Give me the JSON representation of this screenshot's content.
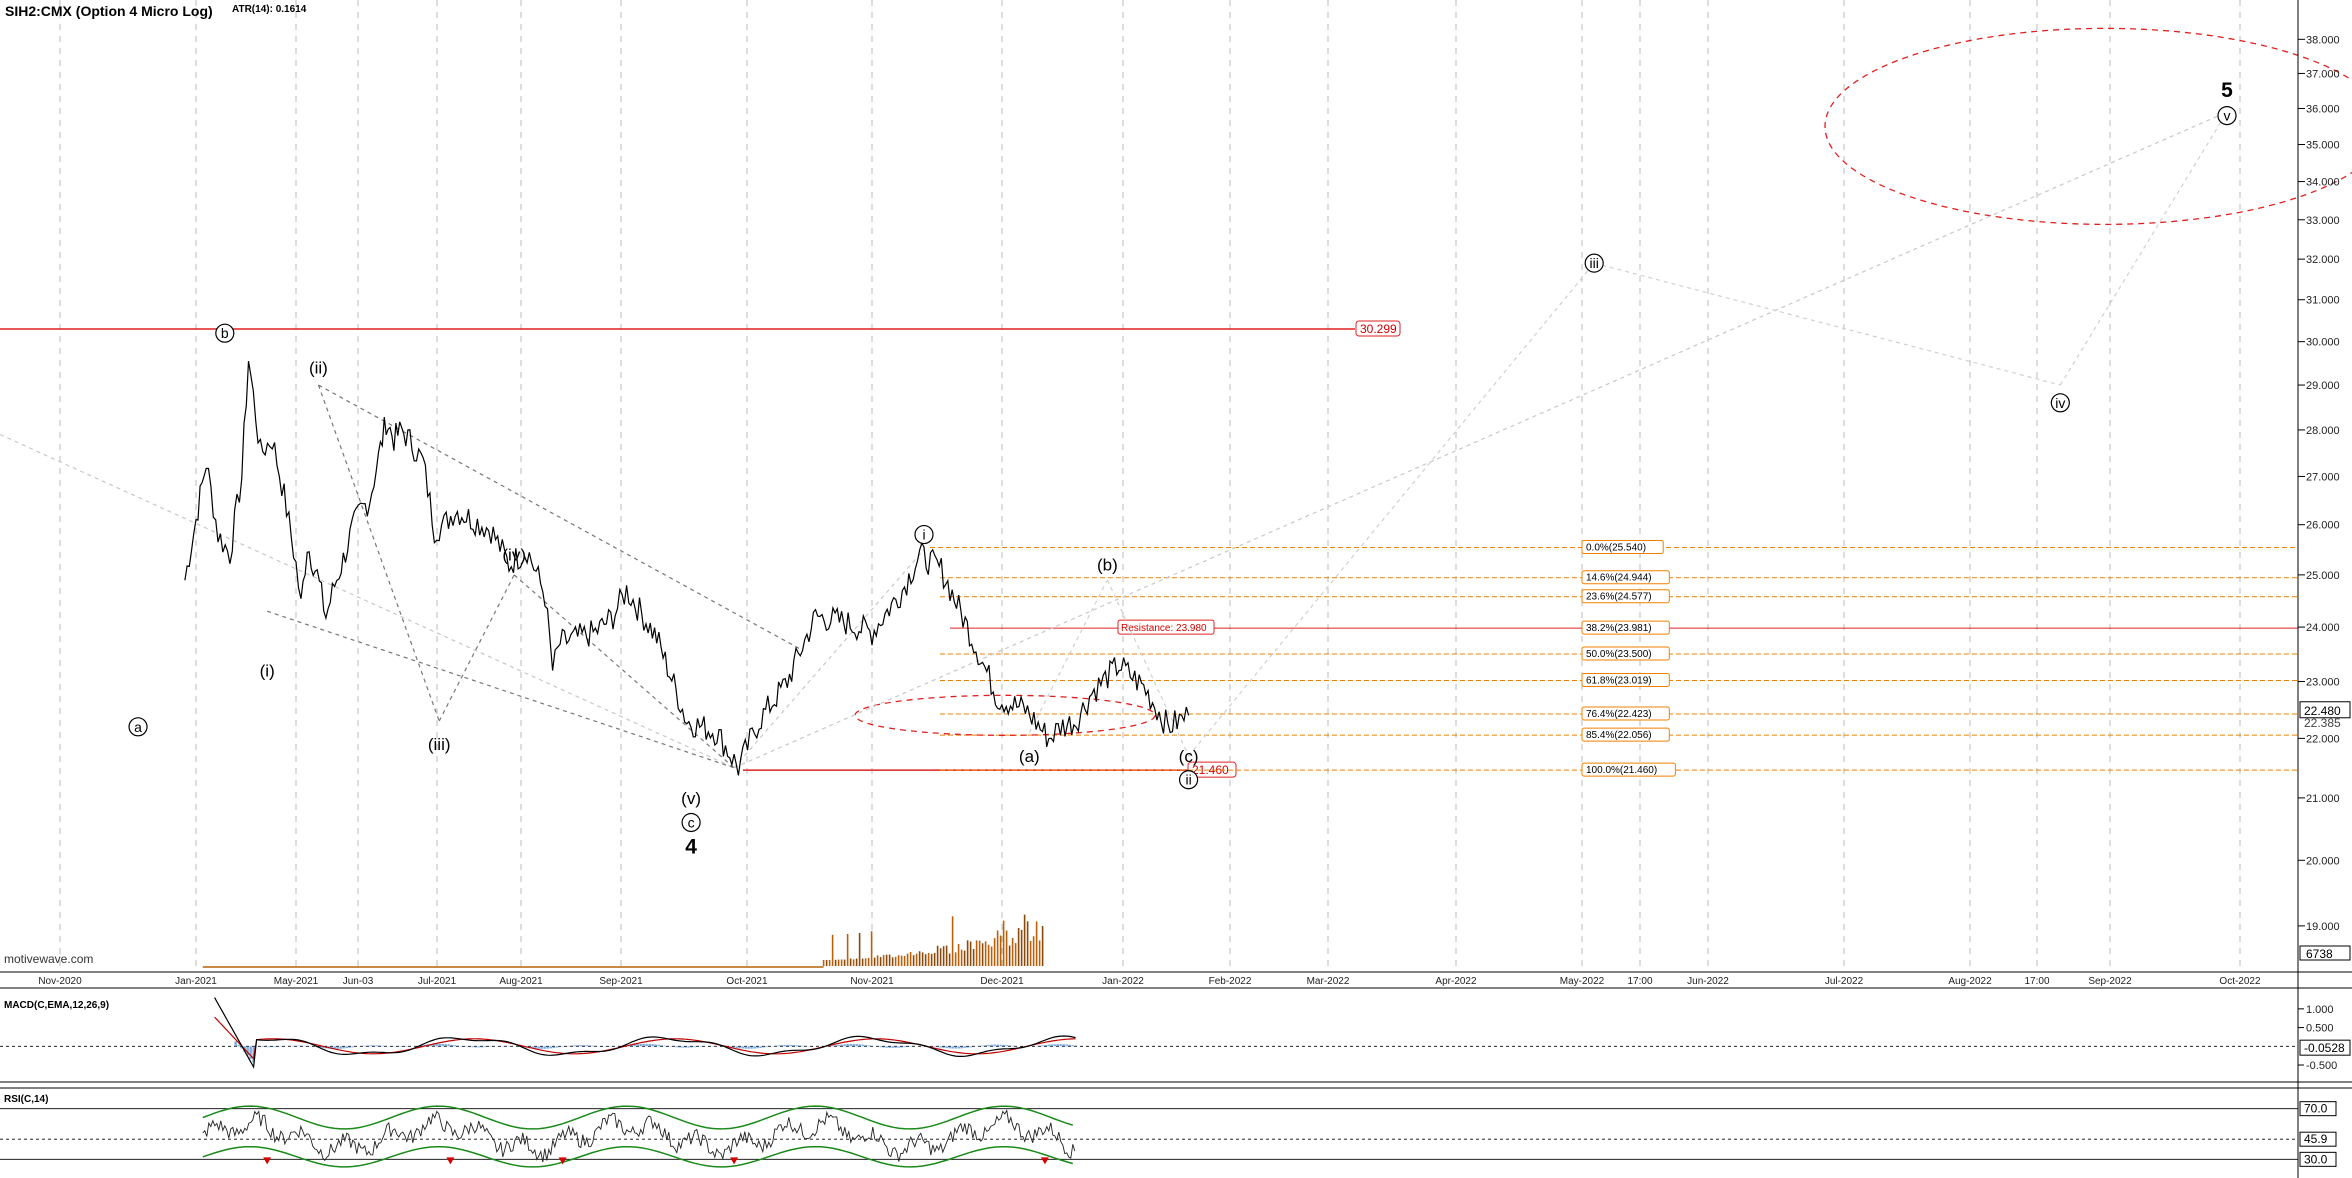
{
  "header": {
    "symbol_title": "SIH2:CMX (Option 4 Micro Log)",
    "atr_label": "ATR(14): 0.1614",
    "watermark": "motivewave.com"
  },
  "colors": {
    "price": "#000000",
    "resistance": "#e02020",
    "fib": "#f08000",
    "projection": "#b0b0b0",
    "channel": "#777777",
    "macd_line": "#000000",
    "macd_signal": "#c00000",
    "macd_hist": "#4a86c8",
    "rsi_band": "#1a8a1a",
    "volume": "#b8600a",
    "background": "#ffffff",
    "grid": "#bbbbbb"
  },
  "chart_data": [
    {
      "type": "line",
      "title": "SIH2:CMX (Option 4 Micro Log)",
      "ylim": [
        18.5,
        38.9
      ],
      "y_scale": "log",
      "grid": true,
      "y_ticks": [
        "19.000",
        "20.000",
        "21.000",
        "22.000",
        "23.000",
        "24.000",
        "25.000",
        "26.000",
        "27.000",
        "28.000",
        "29.000",
        "30.000",
        "31.000",
        "32.000",
        "33.000",
        "34.000",
        "35.000",
        "36.000",
        "37.000",
        "38.000"
      ],
      "x_ticks": [
        "Nov-2020",
        "Jan-2021",
        "May-2021",
        "Jun-03",
        "Jul-2021",
        "Aug-2021",
        "Sep-2021",
        "Oct-2021",
        "Nov-2021",
        "Dec-2021",
        "Jan-2022",
        "Feb-2022",
        "Mar-2022",
        "Apr-2022",
        "May-2022",
        "17:00",
        "Jun-2022",
        "Jul-2022",
        "Aug-2022",
        "17:00",
        "Sep-2022",
        "Oct-2022"
      ],
      "price_series": {
        "x": [
          "2020-12-27",
          "2021-01-01",
          "2021-01-07",
          "2021-01-14",
          "2021-01-21",
          "2021-01-28",
          "2021-02-01",
          "2021-02-08",
          "2021-02-15",
          "2021-02-22",
          "2021-03-01",
          "2021-03-05",
          "2021-03-10",
          "2021-03-18",
          "2021-03-25",
          "2021-04-01",
          "2021-04-08",
          "2021-04-15",
          "2021-04-22",
          "2021-04-29",
          "2021-05-06",
          "2021-05-12",
          "2021-05-18",
          "2021-05-24",
          "2021-06-01",
          "2021-06-08",
          "2021-06-15",
          "2021-06-21",
          "2021-06-28",
          "2021-07-06",
          "2021-07-13",
          "2021-07-20",
          "2021-07-27",
          "2021-08-03",
          "2021-08-06",
          "2021-08-09",
          "2021-08-16",
          "2021-08-23",
          "2021-08-30",
          "2021-09-03",
          "2021-09-10",
          "2021-09-17",
          "2021-09-24",
          "2021-09-29",
          "2021-10-04",
          "2021-10-11",
          "2021-10-18",
          "2021-10-25",
          "2021-11-01",
          "2021-11-08",
          "2021-11-12",
          "2021-11-17",
          "2021-11-23",
          "2021-11-30",
          "2021-12-07",
          "2021-12-13",
          "2021-12-16",
          "2021-12-20",
          "2021-12-24",
          "2021-12-31",
          "2022-01-07",
          "2022-01-14",
          "2022-01-20"
        ],
        "y": [
          24.9,
          26.1,
          27.3,
          25.8,
          25.4,
          27.0,
          29.6,
          27.5,
          27.8,
          26.6,
          25.2,
          24.4,
          25.6,
          25.0,
          24.2,
          24.8,
          25.3,
          25.9,
          26.3,
          26.5,
          27.4,
          28.2,
          27.8,
          28.0,
          27.7,
          27.3,
          25.9,
          26.0,
          26.3,
          26.1,
          25.9,
          25.2,
          25.5,
          24.6,
          23.2,
          23.7,
          23.8,
          23.9,
          24.2,
          24.7,
          23.8,
          22.3,
          22.1,
          21.5,
          22.3,
          23.0,
          24.2,
          24.1,
          23.9,
          24.7,
          25.4,
          25.1,
          24.0,
          22.7,
          22.5,
          22.0,
          22.2,
          22.3,
          22.8,
          23.3,
          22.9,
          22.2,
          22.4
        ]
      },
      "last_price": "22.480",
      "last_price_second": "22.385",
      "resistance_level": "30.299",
      "resistance_label": "Resistance: 23.980",
      "support_level": "21.460",
      "fib_levels": [
        {
          "label": "0.0%(25.540)",
          "value": 25.54
        },
        {
          "label": "14.6%(24.944)",
          "value": 24.944
        },
        {
          "label": "23.6%(24.577)",
          "value": 24.577
        },
        {
          "label": "38.2%(23.981)",
          "value": 23.981
        },
        {
          "label": "50.0%(23.500)",
          "value": 23.5
        },
        {
          "label": "61.8%(23.019)",
          "value": 23.019
        },
        {
          "label": "76.4%(22.423)",
          "value": 22.423
        },
        {
          "label": "85.4%(22.056)",
          "value": 22.056
        },
        {
          "label": "100.0%(21.460)",
          "value": 21.46
        }
      ],
      "wave_labels": [
        {
          "text": "b",
          "circled": true,
          "x": "2021-01-18",
          "y": 30.2
        },
        {
          "text": "a",
          "circled": true,
          "x": "2020-12-06",
          "y": 22.2
        },
        {
          "text": "(i)",
          "circled": false,
          "x": "2021-02-12",
          "y": 23.2
        },
        {
          "text": "(ii)",
          "circled": false,
          "x": "2021-03-19",
          "y": 29.4
        },
        {
          "text": "(iii)",
          "circled": false,
          "x": "2021-06-18",
          "y": 21.9
        },
        {
          "text": "(iv)",
          "circled": false,
          "x": "2021-07-22",
          "y": 25.4
        },
        {
          "text": "(v)",
          "circled": false,
          "x": "2021-09-18",
          "y": 21.0
        },
        {
          "text": "c",
          "circled": true,
          "x": "2021-09-18",
          "y": 20.6
        },
        {
          "text": "4",
          "circled": false,
          "x": "2021-09-18",
          "y": 20.2
        },
        {
          "text": "i",
          "circled": true,
          "x": "2021-11-13",
          "y": 25.8
        },
        {
          "text": "(a)",
          "circled": false,
          "x": "2021-12-08",
          "y": 21.7
        },
        {
          "text": "(b)",
          "circled": false,
          "x": "2021-12-28",
          "y": 25.2
        },
        {
          "text": "(c)",
          "circled": false,
          "x": "2022-01-20",
          "y": 21.7
        },
        {
          "text": "ii",
          "circled": true,
          "x": "2022-01-20",
          "y": 21.3
        },
        {
          "text": "iii",
          "circled": true,
          "x": "2022-05-04",
          "y": 31.9
        },
        {
          "text": "iv",
          "circled": true,
          "x": "2022-08-21",
          "y": 28.6
        },
        {
          "text": "v",
          "circled": true,
          "x": "2022-09-28",
          "y": 35.8
        },
        {
          "text": "5",
          "circled": false,
          "x": "2022-09-28",
          "y": 36.5
        }
      ],
      "annotations": [
        "30.299",
        "Resistance: 23.980",
        "21.460"
      ]
    },
    {
      "type": "line",
      "title": "MACD(C,EMA,12,26,9)",
      "y_ticks": [
        "1.000",
        "0.500",
        "-0.500"
      ],
      "last_value": "-0.0528",
      "ylim": [
        -0.9,
        1.45
      ]
    },
    {
      "type": "line",
      "title": "RSI(C,14)",
      "y_ticks": [
        "70.0",
        "45.9",
        "30.0"
      ],
      "last_value": "45.9",
      "ylim": [
        0,
        100
      ]
    }
  ],
  "volume": {
    "last_label": "6738"
  }
}
